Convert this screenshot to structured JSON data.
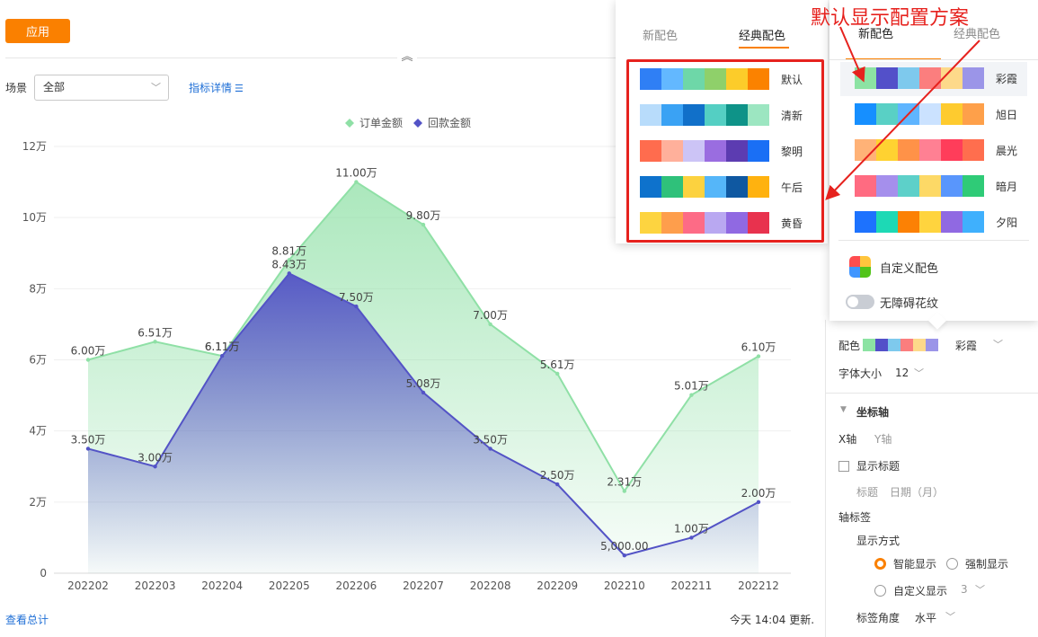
{
  "toolbar": {
    "apply_label": "应用"
  },
  "filter": {
    "scene_label": "场景",
    "scene_value": "全部",
    "metric_link": "指标详情",
    "metric_icon": "list-icon"
  },
  "chart_data": {
    "type": "area",
    "categories": [
      "202202",
      "202203",
      "202204",
      "202205",
      "202206",
      "202207",
      "202208",
      "202209",
      "202210",
      "202211",
      "202212"
    ],
    "series": [
      {
        "name": "订单金额",
        "color": "#8fe0a6",
        "values": [
          60000,
          65100,
          61100,
          88100,
          110000,
          98000,
          70000,
          56100,
          23100,
          50100,
          61000
        ],
        "labels": [
          "6.00万",
          "6.51万",
          "6.11万",
          "8.81万",
          "11.00万",
          "9.80万",
          "7.00万",
          "5.61万",
          "2.31万",
          "5.01万",
          "6.10万"
        ]
      },
      {
        "name": "回款金额",
        "color": "#5353c6",
        "values": [
          35000,
          30000,
          61100,
          84300,
          75000,
          50800,
          35000,
          25000,
          5000,
          10000,
          20000
        ],
        "labels": [
          "3.50万",
          "3.00万",
          "6.11万",
          "8.43万",
          "7.50万",
          "5.08万",
          "3.50万",
          "2.50万",
          "5,000.00",
          "1.00万",
          "2.00万"
        ]
      }
    ],
    "yticks": [
      "0",
      "2万",
      "4万",
      "6万",
      "8万",
      "10万",
      "12万"
    ],
    "ylim": [
      0,
      120000
    ],
    "legend_position": "top-center",
    "grid": true
  },
  "footer": {
    "view_total": "查看总计",
    "updated": "今天 14:04 更新."
  },
  "popup_left": {
    "tabs": [
      "新配色",
      "经典配色"
    ],
    "active_tab": 1,
    "schemes": [
      {
        "name": "默认",
        "colors": [
          "#2f7ff5",
          "#63b8ff",
          "#6ed7a8",
          "#8fd06a",
          "#fccc2a",
          "#fb8200"
        ]
      },
      {
        "name": "清新",
        "colors": [
          "#b8dcfb",
          "#3aa2f4",
          "#1170c9",
          "#54cfc3",
          "#0e9388",
          "#9ce6c1"
        ]
      },
      {
        "name": "黎明",
        "colors": [
          "#ff6c4e",
          "#ffb09b",
          "#ccc4f6",
          "#9a6de0",
          "#5c3cb1",
          "#1a6ff5"
        ]
      },
      {
        "name": "午后",
        "colors": [
          "#0e72cc",
          "#2fc17a",
          "#fcd23f",
          "#55b6f9",
          "#0f58a1",
          "#ffb20f"
        ]
      },
      {
        "name": "黄昏",
        "colors": [
          "#fdd440",
          "#fe9e4c",
          "#fd6b86",
          "#b9a8f1",
          "#9069e2",
          "#e8324e"
        ]
      }
    ]
  },
  "popup_right": {
    "tabs": [
      "新配色",
      "经典配色"
    ],
    "active_tab": 0,
    "schemes": [
      {
        "name": "彩霞",
        "colors": [
          "#8ce3a3",
          "#5350c9",
          "#7ec9ed",
          "#fb7e7e",
          "#fdd98a",
          "#9b95e8"
        ]
      },
      {
        "name": "旭日",
        "colors": [
          "#168fff",
          "#59d0c5",
          "#5fb5ff",
          "#cbe2ff",
          "#fecb2f",
          "#fea04a"
        ]
      },
      {
        "name": "晨光",
        "colors": [
          "#ffb277",
          "#ffd231",
          "#ff9248",
          "#ff8093",
          "#ff3d5a",
          "#ff6e4e"
        ]
      },
      {
        "name": "暗月",
        "colors": [
          "#ff6b81",
          "#a58fec",
          "#5dd0c9",
          "#fdd966",
          "#5996fc",
          "#2fcb77"
        ]
      },
      {
        "name": "夕阳",
        "colors": [
          "#1d72fe",
          "#1dd9b5",
          "#fc8104",
          "#ffd43e",
          "#9069e2",
          "#3fb0fd"
        ]
      }
    ],
    "custom_label": "自定义配色",
    "accessibility_label": "无障碍花纹"
  },
  "annotation": {
    "text": "默认显示配置方案",
    "color": "#e6221e"
  },
  "settings": {
    "color_label": "配色",
    "color_value": "彩霞",
    "color_swatches": [
      "#8ce3a3",
      "#5350c9",
      "#7ec9ed",
      "#fb7e7e",
      "#fdd98a",
      "#9b95e8"
    ],
    "font_size_label": "字体大小",
    "font_size_value": "12",
    "axis_section": "坐标轴",
    "x_axis_tab": "X轴",
    "y_axis_tab": "Y轴",
    "show_title": "显示标题",
    "title_label": "标题",
    "title_value": "日期（月）",
    "axis_label_title": "轴标签",
    "display_mode_label": "显示方式",
    "smart_display": "智能显示",
    "force_display": "强制显示",
    "custom_display": "自定义显示",
    "custom_display_value": "3",
    "label_angle": "标签角度",
    "label_angle_value": "水平"
  }
}
